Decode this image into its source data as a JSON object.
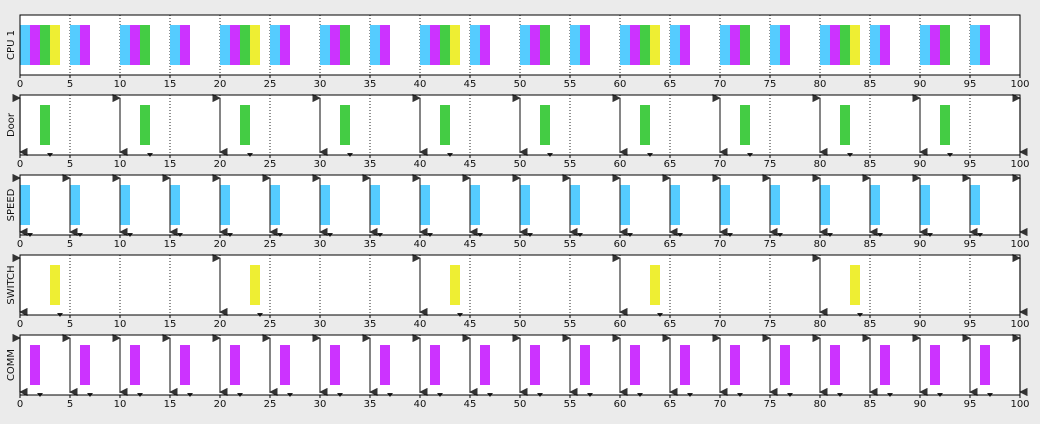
{
  "chart_data": {
    "type": "bar",
    "x_range": [
      0,
      100
    ],
    "x_ticks": [
      0,
      5,
      10,
      15,
      20,
      25,
      30,
      35,
      40,
      45,
      50,
      55,
      60,
      65,
      70,
      75,
      80,
      85,
      90,
      95,
      100
    ],
    "grid": "dotted vertical at every 5 units",
    "colors": {
      "Door": "#44cc44",
      "SPEED": "#55ccff",
      "SWITCH": "#eeee33",
      "COMM": "#cc33ff"
    },
    "rows": [
      {
        "label": "CPU 1",
        "kind": "schedule",
        "segments": [
          {
            "task": "SPEED",
            "start": 0,
            "end": 1
          },
          {
            "task": "COMM",
            "start": 1,
            "end": 2
          },
          {
            "task": "Door",
            "start": 2,
            "end": 3
          },
          {
            "task": "SWITCH",
            "start": 3,
            "end": 4
          },
          {
            "task": "SPEED",
            "start": 5,
            "end": 6
          },
          {
            "task": "COMM",
            "start": 6,
            "end": 7
          },
          {
            "task": "SPEED",
            "start": 10,
            "end": 11
          },
          {
            "task": "COMM",
            "start": 11,
            "end": 12
          },
          {
            "task": "Door",
            "start": 12,
            "end": 13
          },
          {
            "task": "SPEED",
            "start": 15,
            "end": 16
          },
          {
            "task": "COMM",
            "start": 16,
            "end": 17
          },
          {
            "task": "SPEED",
            "start": 20,
            "end": 21
          },
          {
            "task": "COMM",
            "start": 21,
            "end": 22
          },
          {
            "task": "Door",
            "start": 22,
            "end": 23
          },
          {
            "task": "SWITCH",
            "start": 23,
            "end": 24
          },
          {
            "task": "SPEED",
            "start": 25,
            "end": 26
          },
          {
            "task": "COMM",
            "start": 26,
            "end": 27
          },
          {
            "task": "SPEED",
            "start": 30,
            "end": 31
          },
          {
            "task": "COMM",
            "start": 31,
            "end": 32
          },
          {
            "task": "Door",
            "start": 32,
            "end": 33
          },
          {
            "task": "SPEED",
            "start": 35,
            "end": 36
          },
          {
            "task": "COMM",
            "start": 36,
            "end": 37
          },
          {
            "task": "SPEED",
            "start": 40,
            "end": 41
          },
          {
            "task": "COMM",
            "start": 41,
            "end": 42
          },
          {
            "task": "Door",
            "start": 42,
            "end": 43
          },
          {
            "task": "SWITCH",
            "start": 43,
            "end": 44
          },
          {
            "task": "SPEED",
            "start": 45,
            "end": 46
          },
          {
            "task": "COMM",
            "start": 46,
            "end": 47
          },
          {
            "task": "SPEED",
            "start": 50,
            "end": 51
          },
          {
            "task": "COMM",
            "start": 51,
            "end": 52
          },
          {
            "task": "Door",
            "start": 52,
            "end": 53
          },
          {
            "task": "SPEED",
            "start": 55,
            "end": 56
          },
          {
            "task": "COMM",
            "start": 56,
            "end": 57
          },
          {
            "task": "SPEED",
            "start": 60,
            "end": 61
          },
          {
            "task": "COMM",
            "start": 61,
            "end": 62
          },
          {
            "task": "Door",
            "start": 62,
            "end": 63
          },
          {
            "task": "SWITCH",
            "start": 63,
            "end": 64
          },
          {
            "task": "SPEED",
            "start": 65,
            "end": 66
          },
          {
            "task": "COMM",
            "start": 66,
            "end": 67
          },
          {
            "task": "SPEED",
            "start": 70,
            "end": 71
          },
          {
            "task": "COMM",
            "start": 71,
            "end": 72
          },
          {
            "task": "Door",
            "start": 72,
            "end": 73
          },
          {
            "task": "SPEED",
            "start": 75,
            "end": 76
          },
          {
            "task": "COMM",
            "start": 76,
            "end": 77
          },
          {
            "task": "SPEED",
            "start": 80,
            "end": 81
          },
          {
            "task": "COMM",
            "start": 81,
            "end": 82
          },
          {
            "task": "Door",
            "start": 82,
            "end": 83
          },
          {
            "task": "SWITCH",
            "start": 83,
            "end": 84
          },
          {
            "task": "SPEED",
            "start": 85,
            "end": 86
          },
          {
            "task": "COMM",
            "start": 86,
            "end": 87
          },
          {
            "task": "SPEED",
            "start": 90,
            "end": 91
          },
          {
            "task": "COMM",
            "start": 91,
            "end": 92
          },
          {
            "task": "Door",
            "start": 92,
            "end": 93
          },
          {
            "task": "SPEED",
            "start": 95,
            "end": 96
          },
          {
            "task": "COMM",
            "start": 96,
            "end": 97
          }
        ]
      },
      {
        "label": "Door",
        "kind": "task",
        "task": "Door",
        "releases": [
          0,
          10,
          20,
          30,
          40,
          50,
          60,
          70,
          80,
          90,
          100
        ],
        "deadlines": [
          3,
          13,
          23,
          33,
          43,
          53,
          63,
          73,
          83,
          93
        ],
        "executions": [
          [
            2,
            3
          ],
          [
            12,
            13
          ],
          [
            22,
            23
          ],
          [
            32,
            33
          ],
          [
            42,
            43
          ],
          [
            52,
            53
          ],
          [
            62,
            63
          ],
          [
            72,
            73
          ],
          [
            82,
            83
          ],
          [
            92,
            93
          ]
        ]
      },
      {
        "label": "SPEED",
        "kind": "task",
        "task": "SPEED",
        "releases": [
          0,
          5,
          10,
          15,
          20,
          25,
          30,
          35,
          40,
          45,
          50,
          55,
          60,
          65,
          70,
          75,
          80,
          85,
          90,
          95,
          100
        ],
        "deadlines": [
          1,
          6,
          11,
          16,
          21,
          26,
          31,
          36,
          41,
          46,
          51,
          56,
          61,
          66,
          71,
          76,
          81,
          86,
          91,
          96
        ],
        "executions": [
          [
            0,
            1
          ],
          [
            5,
            6
          ],
          [
            10,
            11
          ],
          [
            15,
            16
          ],
          [
            20,
            21
          ],
          [
            25,
            26
          ],
          [
            30,
            31
          ],
          [
            35,
            36
          ],
          [
            40,
            41
          ],
          [
            45,
            46
          ],
          [
            50,
            51
          ],
          [
            55,
            56
          ],
          [
            60,
            61
          ],
          [
            65,
            66
          ],
          [
            70,
            71
          ],
          [
            75,
            76
          ],
          [
            80,
            81
          ],
          [
            85,
            86
          ],
          [
            90,
            91
          ],
          [
            95,
            96
          ]
        ]
      },
      {
        "label": "SWITCH",
        "kind": "task",
        "task": "SWITCH",
        "releases": [
          0,
          20,
          40,
          60,
          80,
          100
        ],
        "deadlines": [
          4,
          24,
          44,
          64,
          84
        ],
        "executions": [
          [
            3,
            4
          ],
          [
            23,
            24
          ],
          [
            43,
            44
          ],
          [
            63,
            64
          ],
          [
            83,
            84
          ]
        ]
      },
      {
        "label": "COMM",
        "kind": "task",
        "task": "COMM",
        "releases": [
          0,
          5,
          10,
          15,
          20,
          25,
          30,
          35,
          40,
          45,
          50,
          55,
          60,
          65,
          70,
          75,
          80,
          85,
          90,
          95,
          100
        ],
        "deadlines": [
          2,
          7,
          12,
          17,
          22,
          27,
          32,
          37,
          42,
          47,
          52,
          57,
          62,
          67,
          72,
          77,
          82,
          87,
          92,
          97
        ],
        "executions": [
          [
            1,
            2
          ],
          [
            6,
            7
          ],
          [
            11,
            12
          ],
          [
            16,
            17
          ],
          [
            21,
            22
          ],
          [
            26,
            27
          ],
          [
            31,
            32
          ],
          [
            36,
            37
          ],
          [
            41,
            42
          ],
          [
            46,
            47
          ],
          [
            51,
            52
          ],
          [
            56,
            57
          ],
          [
            61,
            62
          ],
          [
            66,
            67
          ],
          [
            71,
            72
          ],
          [
            76,
            77
          ],
          [
            81,
            82
          ],
          [
            86,
            87
          ],
          [
            91,
            92
          ],
          [
            96,
            97
          ]
        ]
      }
    ]
  }
}
